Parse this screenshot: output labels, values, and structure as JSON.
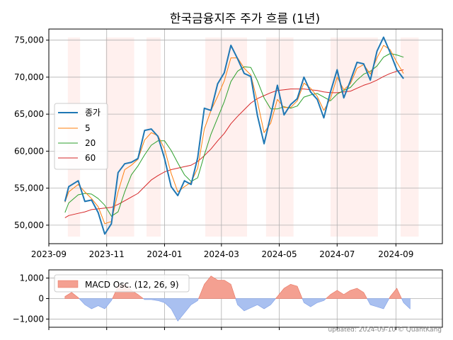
{
  "chart_data": [
    {
      "type": "line",
      "title": "한국금융지주 주가 흐름 (1년)",
      "xlabel": "",
      "ylabel": "",
      "x_range": [
        "2023-09-01",
        "2024-10-20"
      ],
      "ylim": [
        47500,
        76500
      ],
      "x_ticks": [
        "2023-09",
        "2023-11",
        "2024-01",
        "2024-03",
        "2024-05",
        "2024-07",
        "2024-09"
      ],
      "y_ticks": [
        "50,000",
        "55,000",
        "60,000",
        "65,000",
        "70,000",
        "75,000"
      ],
      "grid": true,
      "legend_position": "center-left",
      "legend": [
        "종가",
        "5",
        "20",
        "60"
      ],
      "colors": {
        "close": "#1f77b4",
        "ma5": "#ff7f0e",
        "ma20": "#2ca02c",
        "ma60": "#d62728",
        "shade": "#fff0ee"
      },
      "shaded_periods": [
        [
          "2023-09-21",
          "2023-10-04"
        ],
        [
          "2023-10-31",
          "2023-11-30"
        ],
        [
          "2023-12-13",
          "2023-12-28"
        ],
        [
          "2024-02-13",
          "2024-03-28"
        ],
        [
          "2024-04-17",
          "2024-05-16"
        ],
        [
          "2024-06-24",
          "2024-08-13"
        ],
        [
          "2024-09-06",
          "2024-09-25"
        ]
      ],
      "x": [
        "2023-09-18",
        "2023-09-22",
        "2023-10-02",
        "2023-10-09",
        "2023-10-16",
        "2023-10-23",
        "2023-10-30",
        "2023-11-06",
        "2023-11-13",
        "2023-11-20",
        "2023-11-27",
        "2023-12-04",
        "2023-12-11",
        "2023-12-18",
        "2023-12-25",
        "2024-01-01",
        "2024-01-08",
        "2024-01-15",
        "2024-01-22",
        "2024-01-29",
        "2024-02-05",
        "2024-02-12",
        "2024-02-19",
        "2024-02-26",
        "2024-03-04",
        "2024-03-11",
        "2024-03-18",
        "2024-03-25",
        "2024-04-01",
        "2024-04-08",
        "2024-04-15",
        "2024-04-22",
        "2024-04-29",
        "2024-05-06",
        "2024-05-13",
        "2024-05-20",
        "2024-05-27",
        "2024-06-03",
        "2024-06-10",
        "2024-06-17",
        "2024-06-24",
        "2024-07-01",
        "2024-07-08",
        "2024-07-15",
        "2024-07-22",
        "2024-07-29",
        "2024-08-05",
        "2024-08-12",
        "2024-08-19",
        "2024-08-26",
        "2024-09-02",
        "2024-09-09"
      ],
      "series": [
        {
          "name": "종가",
          "values": [
            53200,
            55200,
            56000,
            53200,
            53400,
            51700,
            48800,
            50200,
            57100,
            58300,
            58500,
            59000,
            62800,
            63000,
            62000,
            59000,
            55200,
            54000,
            56000,
            55500,
            59100,
            65800,
            65500,
            69100,
            70600,
            74300,
            72500,
            70500,
            70100,
            64800,
            61000,
            64800,
            68900,
            64900,
            66300,
            67100,
            70000,
            68000,
            67000,
            64500,
            68000,
            71000,
            67200,
            69500,
            72000,
            71800,
            69600,
            73500,
            75400,
            73300,
            71000,
            69800
          ]
        },
        {
          "name": "5",
          "values": [
            53100,
            54500,
            55500,
            54500,
            53600,
            52500,
            50200,
            50500,
            54500,
            57500,
            58100,
            58900,
            61500,
            62500,
            62100,
            60300,
            57000,
            54500,
            55200,
            55800,
            57700,
            63000,
            65500,
            67400,
            69500,
            72600,
            72600,
            71200,
            70300,
            66700,
            62500,
            63800,
            67000,
            65900,
            65900,
            66800,
            69200,
            68500,
            67400,
            65500,
            67100,
            70000,
            68300,
            69100,
            71200,
            71700,
            70400,
            72600,
            74300,
            73700,
            72000,
            70500
          ]
        },
        {
          "name": "20",
          "values": [
            51700,
            53000,
            54100,
            54300,
            54200,
            53600,
            52700,
            51200,
            51800,
            54500,
            56800,
            58000,
            59500,
            60800,
            61400,
            61400,
            60100,
            58400,
            56800,
            55900,
            56400,
            59500,
            62300,
            64500,
            66700,
            69400,
            70800,
            71400,
            71300,
            69500,
            67200,
            65700,
            65700,
            66000,
            65800,
            66100,
            67300,
            67600,
            67800,
            67300,
            66800,
            67700,
            68200,
            68600,
            69600,
            70400,
            70800,
            71500,
            72700,
            73200,
            73000,
            72700
          ]
        },
        {
          "name": "60",
          "values": [
            51000,
            51300,
            51600,
            51800,
            52100,
            52200,
            52300,
            52400,
            52800,
            53300,
            53800,
            54300,
            55200,
            56100,
            56700,
            57200,
            57500,
            57700,
            57900,
            58100,
            58600,
            59400,
            60300,
            61400,
            62400,
            63700,
            64700,
            65600,
            66500,
            67100,
            67500,
            67900,
            68200,
            68300,
            68400,
            68400,
            68400,
            68300,
            68200,
            68000,
            67900,
            67900,
            68000,
            68100,
            68500,
            68900,
            69200,
            69600,
            70100,
            70500,
            70800,
            71000
          ]
        }
      ]
    },
    {
      "type": "area",
      "title": "",
      "x_range": [
        "2023-09-01",
        "2024-10-20"
      ],
      "ylim": [
        -1400,
        1400
      ],
      "y_ticks": [
        "1,000",
        "0",
        "−1,000"
      ],
      "grid": true,
      "legend": [
        "MACD Osc. (12, 26, 9)"
      ],
      "legend_position": "top-left",
      "colors": {
        "positive": "#f4a091",
        "negative": "#a9c0f0",
        "positive_edge": "#e8735f",
        "negative_edge": "#7f9fe6"
      },
      "x": [
        "2023-09-18",
        "2023-09-25",
        "2023-10-02",
        "2023-10-09",
        "2023-10-16",
        "2023-10-23",
        "2023-10-30",
        "2023-11-06",
        "2023-11-13",
        "2023-11-20",
        "2023-11-27",
        "2023-12-04",
        "2023-12-11",
        "2023-12-18",
        "2023-12-25",
        "2024-01-01",
        "2024-01-08",
        "2024-01-15",
        "2024-01-22",
        "2024-01-29",
        "2024-02-05",
        "2024-02-12",
        "2024-02-19",
        "2024-02-26",
        "2024-03-04",
        "2024-03-11",
        "2024-03-18",
        "2024-03-25",
        "2024-04-01",
        "2024-04-08",
        "2024-04-15",
        "2024-04-22",
        "2024-04-29",
        "2024-05-06",
        "2024-05-13",
        "2024-05-20",
        "2024-05-27",
        "2024-06-03",
        "2024-06-10",
        "2024-06-17",
        "2024-06-24",
        "2024-07-01",
        "2024-07-08",
        "2024-07-15",
        "2024-07-22",
        "2024-07-29",
        "2024-08-05",
        "2024-08-12",
        "2024-08-19",
        "2024-08-26",
        "2024-09-02",
        "2024-09-09",
        "2024-09-16"
      ],
      "values": [
        100,
        300,
        50,
        -300,
        -500,
        -350,
        -500,
        -100,
        600,
        700,
        400,
        200,
        -50,
        -50,
        -100,
        -200,
        -500,
        -1100,
        -700,
        -300,
        -100,
        700,
        1100,
        900,
        900,
        700,
        -300,
        -600,
        -450,
        -300,
        -500,
        -300,
        100,
        500,
        700,
        600,
        -200,
        -400,
        -200,
        -100,
        200,
        400,
        200,
        400,
        500,
        300,
        -300,
        -400,
        -500,
        100,
        500,
        -200,
        -500
      ]
    }
  ],
  "footer": {
    "text": "updated: 2024-09-10 © QuantKang"
  }
}
